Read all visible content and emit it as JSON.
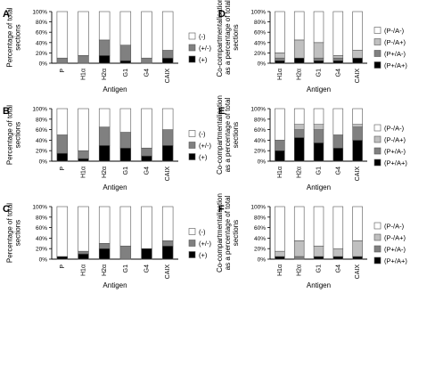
{
  "legend_left": [
    "(-)",
    "(+/-)",
    "(+)"
  ],
  "legend_right": [
    "(P-/A-)",
    "(P-/A+)",
    "(P+/A-)",
    "(P+/A+)"
  ],
  "chart_data": [
    {
      "panel": "A",
      "type": "bar",
      "stacked": true,
      "categories": [
        "P",
        "H1α",
        "H2α",
        "G1",
        "G4",
        "CAIX"
      ],
      "ylabel": [
        "Percentage of total",
        "sections"
      ],
      "xlabel": "Antigen",
      "yticks": [
        "0%",
        "20%",
        "40%",
        "60%",
        "80%",
        "100%"
      ],
      "ylim": [
        0,
        100
      ],
      "series": [
        {
          "name": "(+)",
          "values": [
            0,
            0,
            15,
            5,
            0,
            10
          ]
        },
        {
          "name": "(+/-)",
          "values": [
            10,
            15,
            30,
            30,
            10,
            15
          ]
        },
        {
          "name": "(-)",
          "values": [
            90,
            85,
            55,
            65,
            90,
            75
          ]
        }
      ]
    },
    {
      "panel": "B",
      "type": "bar",
      "stacked": true,
      "categories": [
        "P",
        "H1α",
        "H2α",
        "G1",
        "G4",
        "CAIX"
      ],
      "ylabel": [
        "Percentage of total",
        "sections"
      ],
      "xlabel": "Antigen",
      "yticks": [
        "0%",
        "20%",
        "40%",
        "60%",
        "80%",
        "100%"
      ],
      "ylim": [
        0,
        100
      ],
      "series": [
        {
          "name": "(+)",
          "values": [
            15,
            5,
            30,
            25,
            10,
            30
          ]
        },
        {
          "name": "(+/-)",
          "values": [
            35,
            15,
            35,
            30,
            15,
            30
          ]
        },
        {
          "name": "(-)",
          "values": [
            50,
            80,
            35,
            45,
            75,
            40
          ]
        }
      ]
    },
    {
      "panel": "C",
      "type": "bar",
      "stacked": true,
      "categories": [
        "P",
        "H1α",
        "H2α",
        "G1",
        "G4",
        "CAIX"
      ],
      "ylabel": [
        "Percentage of total",
        "sections"
      ],
      "xlabel": "Antigen",
      "yticks": [
        "0%",
        "20%",
        "40%",
        "60%",
        "80%",
        "100%"
      ],
      "ylim": [
        0,
        100
      ],
      "series": [
        {
          "name": "(+)",
          "values": [
            5,
            10,
            20,
            0,
            20,
            25
          ]
        },
        {
          "name": "(+/-)",
          "values": [
            0,
            5,
            10,
            25,
            0,
            10
          ]
        },
        {
          "name": "(-)",
          "values": [
            95,
            85,
            70,
            75,
            80,
            65
          ]
        }
      ]
    },
    {
      "panel": "D",
      "type": "bar",
      "stacked": true,
      "categories": [
        "H1α",
        "H2α",
        "G1",
        "G4",
        "CAIX"
      ],
      "ylabel": [
        "Co-compartmentalisation",
        "as a percentage of total",
        "sections"
      ],
      "xlabel": "Antigen",
      "yticks": [
        "0%",
        "20%",
        "40%",
        "60%",
        "80%",
        "100%"
      ],
      "ylim": [
        0,
        100
      ],
      "series": [
        {
          "name": "(P+/A+)",
          "values": [
            5,
            10,
            5,
            5,
            10
          ]
        },
        {
          "name": "(P+/A-)",
          "values": [
            5,
            0,
            5,
            5,
            0
          ]
        },
        {
          "name": "(P-/A+)",
          "values": [
            10,
            35,
            30,
            5,
            15
          ]
        },
        {
          "name": "(P-/A-)",
          "values": [
            80,
            55,
            60,
            85,
            75
          ]
        }
      ]
    },
    {
      "panel": "E",
      "type": "bar",
      "stacked": true,
      "categories": [
        "H1α",
        "H2α",
        "G1",
        "G4",
        "CAIX"
      ],
      "ylabel": [
        "Co-compartmentalisation",
        "as a percentage of total",
        "sections"
      ],
      "xlabel": "Antigen",
      "yticks": [
        "0%",
        "20%",
        "40%",
        "60%",
        "80%",
        "100%"
      ],
      "ylim": [
        0,
        100
      ],
      "series": [
        {
          "name": "(P+/A+)",
          "values": [
            20,
            45,
            35,
            25,
            40
          ]
        },
        {
          "name": "(P+/A-)",
          "values": [
            20,
            15,
            25,
            25,
            25
          ]
        },
        {
          "name": "(P-/A+)",
          "values": [
            0,
            10,
            10,
            0,
            5
          ]
        },
        {
          "name": "(P-/A-)",
          "values": [
            60,
            30,
            30,
            50,
            30
          ]
        }
      ]
    },
    {
      "panel": "F",
      "type": "bar",
      "stacked": true,
      "categories": [
        "H1α",
        "H2α",
        "G1",
        "G4",
        "CAIX"
      ],
      "ylabel": [
        "Co-compartmentalisation",
        "as a percentage of total",
        "sections"
      ],
      "xlabel": "Antigen",
      "yticks": [
        "0%",
        "20%",
        "40%",
        "60%",
        "80%",
        "100%"
      ],
      "ylim": [
        0,
        100
      ],
      "series": [
        {
          "name": "(P+/A+)",
          "values": [
            5,
            0,
            5,
            5,
            5
          ]
        },
        {
          "name": "(P+/A-)",
          "values": [
            0,
            5,
            0,
            0,
            0
          ]
        },
        {
          "name": "(P-/A+)",
          "values": [
            10,
            30,
            20,
            15,
            30
          ]
        },
        {
          "name": "(P-/A-)",
          "values": [
            85,
            65,
            75,
            80,
            65
          ]
        }
      ]
    }
  ],
  "colors": {
    "(+)": "#000000",
    "(+/-)": "#808080",
    "(-)": "#ffffff",
    "(P+/A+)": "#000000",
    "(P+/A-)": "#808080",
    "(P-/A+)": "#c0c0c0",
    "(P-/A-)": "#ffffff"
  }
}
